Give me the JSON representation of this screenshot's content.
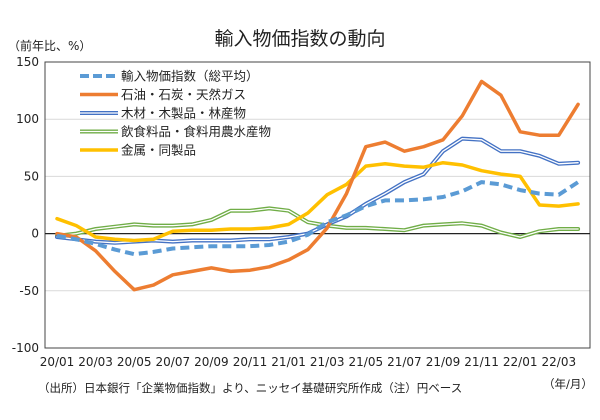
{
  "chart_data": {
    "type": "line",
    "title": "輸入物価指数の動向",
    "ylabel": "（前年比、%）",
    "xlabel": "（年/月）",
    "ylim": [
      -100,
      150
    ],
    "yticks": [
      150,
      100,
      50,
      0,
      -50,
      -100
    ],
    "grid": true,
    "legend_position": "top-left",
    "x": [
      "20/01",
      "20/02",
      "20/03",
      "20/04",
      "20/05",
      "20/06",
      "20/07",
      "20/08",
      "20/09",
      "20/10",
      "20/11",
      "20/12",
      "21/01",
      "21/02",
      "21/03",
      "21/04",
      "21/05",
      "21/06",
      "21/07",
      "21/08",
      "21/09",
      "21/10",
      "21/11",
      "21/12",
      "22/01",
      "22/02",
      "22/03",
      "22/04"
    ],
    "xtick_labels": [
      "20/01",
      "20/03",
      "20/05",
      "20/07",
      "20/09",
      "20/11",
      "21/01",
      "21/03",
      "21/05",
      "21/07",
      "21/09",
      "21/11",
      "22/01",
      "22/03"
    ],
    "series": [
      {
        "name": "輸入物価指数（総平均）",
        "color": "#5b9bd5",
        "style": "dashed",
        "values": [
          -2,
          -5,
          -9,
          -14,
          -18,
          -16,
          -13,
          -12,
          -11,
          -11,
          -11,
          -10,
          -7,
          -1,
          10,
          16,
          24,
          29,
          29,
          30,
          32,
          37,
          45,
          43,
          38,
          35,
          34,
          45
        ]
      },
      {
        "name": "石油・石炭・天然ガス",
        "color": "#ed7d31",
        "style": "solid",
        "values": [
          0,
          -3,
          -15,
          -33,
          -49,
          -45,
          -36,
          -33,
          -30,
          -33,
          -32,
          -29,
          -23,
          -14,
          5,
          35,
          76,
          80,
          72,
          76,
          82,
          103,
          133,
          121,
          89,
          86,
          86,
          113
        ]
      },
      {
        "name": "木材・木製品・林産物",
        "color": "#4472c4",
        "style": "double",
        "values": [
          -3,
          -5,
          -7,
          -8,
          -7,
          -6,
          -7,
          -6,
          -6,
          -6,
          -5,
          -5,
          -3,
          0,
          8,
          15,
          26,
          35,
          45,
          52,
          72,
          83,
          82,
          72,
          72,
          68,
          61,
          62
        ]
      },
      {
        "name": "飲食料品・食料用農水産物",
        "color": "#70ad47",
        "style": "double",
        "values": [
          -2,
          0,
          4,
          6,
          8,
          7,
          7,
          8,
          12,
          20,
          20,
          22,
          20,
          10,
          7,
          5,
          5,
          4,
          3,
          7,
          8,
          9,
          7,
          1,
          -3,
          2,
          4,
          4
        ]
      },
      {
        "name": "金属・同製品",
        "color": "#ffc000",
        "style": "solid",
        "values": [
          13,
          7,
          -3,
          -5,
          -6,
          -5,
          2,
          3,
          3,
          4,
          4,
          5,
          8,
          18,
          34,
          43,
          59,
          61,
          59,
          58,
          62,
          60,
          55,
          52,
          50,
          25,
          24,
          26
        ]
      }
    ],
    "footnote": "（出所）日本銀行「企業物価指数」より、ニッセイ基礎研究所作成（注）円ベース"
  }
}
